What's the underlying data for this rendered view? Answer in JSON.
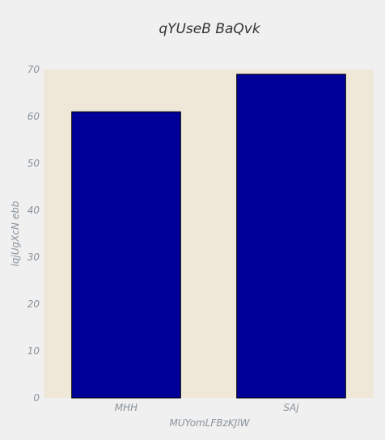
{
  "chart_data": {
    "type": "bar",
    "title": "qYUseB BaQvk",
    "xlabel": "MUYomLFBzKJlW",
    "ylabel": "lqjUgXcN ebb",
    "categories": [
      "MHH",
      "SAj"
    ],
    "values": [
      61,
      69
    ],
    "ylim": [
      0,
      70
    ],
    "yticks": [
      "0",
      "10",
      "20",
      "30",
      "40",
      "50",
      "60",
      "70"
    ],
    "grid": false,
    "colors": {
      "bar": "#000099",
      "bar_edge": "#000000",
      "plot_background": "#efe8d8",
      "figure_background": "#f0f0f0",
      "tick_text": "#8a939b",
      "title_text": "#333333"
    }
  }
}
